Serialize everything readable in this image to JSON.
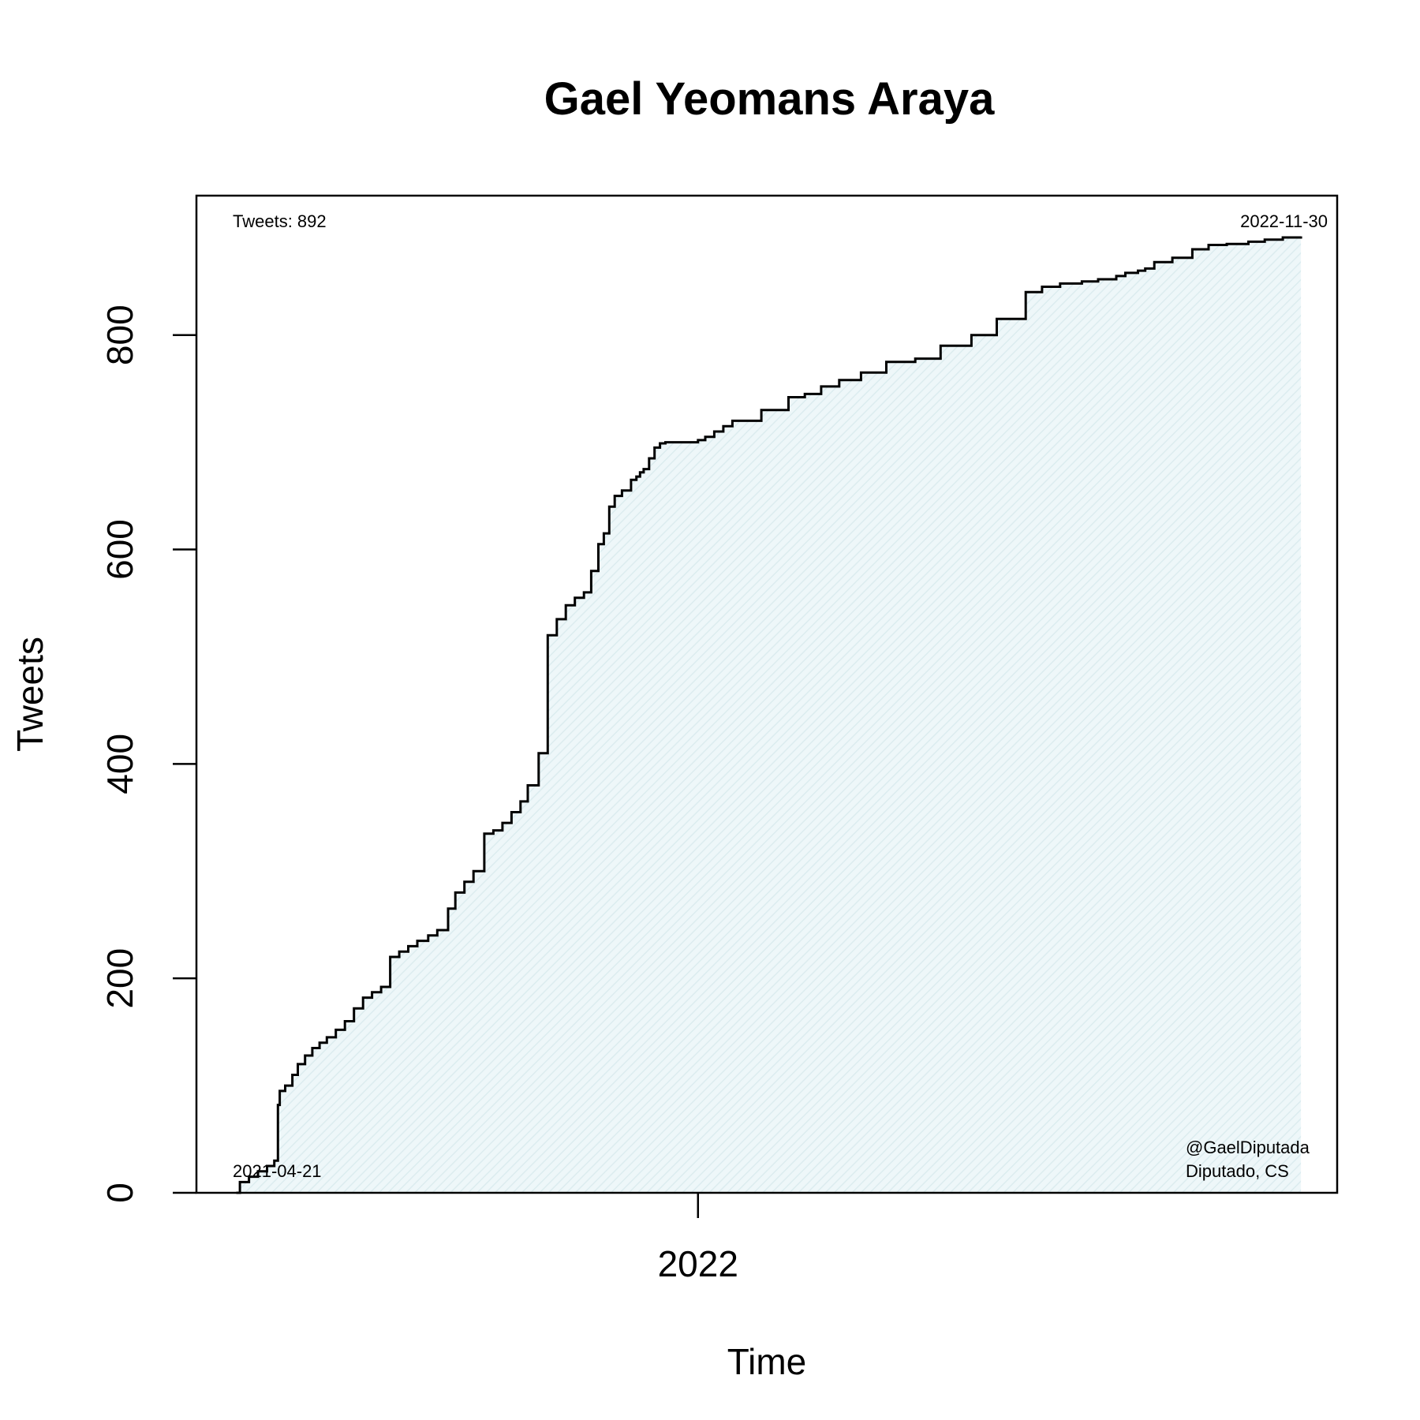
{
  "chart_data": {
    "type": "area",
    "title": "Gael Yeomans Araya",
    "xlabel": "Time",
    "ylabel": "Tweets",
    "x_ticks": [
      {
        "date": "2022-01-01",
        "label": "2022"
      }
    ],
    "y_ticks": [
      0,
      200,
      400,
      600,
      800
    ],
    "ylim": [
      0,
      930
    ],
    "xlim": [
      "2021-03-30",
      "2022-12-20"
    ],
    "grid": false,
    "line_color": "#000000",
    "fill_color": "#e3f1f4",
    "annotations": {
      "top_left": "Tweets: 892",
      "top_right": "2022-11-30",
      "bottom_left": "2021-04-21",
      "bottom_right_1": "@GaelDiputada",
      "bottom_right_2": "Diputado, CS"
    },
    "series": [
      {
        "x": [
          "2021-04-21",
          "2021-04-23",
          "2021-04-28",
          "2021-05-03",
          "2021-05-08",
          "2021-05-12",
          "2021-05-14",
          "2021-05-15",
          "2021-05-18",
          "2021-05-22",
          "2021-05-25",
          "2021-05-29",
          "2021-06-02",
          "2021-06-06",
          "2021-06-10",
          "2021-06-15",
          "2021-06-20",
          "2021-06-25",
          "2021-06-30",
          "2021-07-05",
          "2021-07-10",
          "2021-07-15",
          "2021-07-20",
          "2021-07-25",
          "2021-07-30",
          "2021-08-05",
          "2021-08-10",
          "2021-08-16",
          "2021-08-20",
          "2021-08-25",
          "2021-08-30",
          "2021-09-05",
          "2021-09-10",
          "2021-09-15",
          "2021-09-20",
          "2021-09-25",
          "2021-09-29",
          "2021-10-05",
          "2021-10-10",
          "2021-10-15",
          "2021-10-20",
          "2021-10-25",
          "2021-10-30",
          "2021-11-03",
          "2021-11-07",
          "2021-11-10",
          "2021-11-13",
          "2021-11-16",
          "2021-11-20",
          "2021-11-25",
          "2021-11-28",
          "2021-11-30",
          "2021-12-02",
          "2021-12-05",
          "2021-12-08",
          "2021-12-11",
          "2021-12-14",
          "2021-12-17",
          "2021-12-21",
          "2021-12-25",
          "2021-12-28",
          "2022-01-01",
          "2022-01-05",
          "2022-01-10",
          "2022-01-15",
          "2022-01-20",
          "2022-02-05",
          "2022-02-20",
          "2022-03-01",
          "2022-03-10",
          "2022-03-20",
          "2022-04-01",
          "2022-04-15",
          "2022-05-01",
          "2022-05-15",
          "2022-06-01",
          "2022-06-15",
          "2022-07-01",
          "2022-07-10",
          "2022-07-20",
          "2022-08-01",
          "2022-08-10",
          "2022-08-20",
          "2022-08-25",
          "2022-09-01",
          "2022-09-05",
          "2022-09-10",
          "2022-09-20",
          "2022-10-01",
          "2022-10-10",
          "2022-10-20",
          "2022-11-01",
          "2022-11-10",
          "2022-11-20",
          "2022-11-30"
        ],
        "y": [
          0,
          10,
          15,
          20,
          25,
          30,
          82,
          95,
          100,
          110,
          120,
          128,
          135,
          140,
          145,
          152,
          160,
          172,
          182,
          187,
          192,
          220,
          225,
          230,
          235,
          240,
          245,
          265,
          280,
          290,
          300,
          335,
          338,
          345,
          355,
          365,
          380,
          410,
          520,
          535,
          548,
          555,
          560,
          580,
          605,
          615,
          640,
          650,
          655,
          665,
          668,
          672,
          675,
          685,
          695,
          699,
          700,
          700,
          700,
          700,
          700,
          702,
          705,
          710,
          715,
          720,
          730,
          742,
          745,
          752,
          758,
          765,
          775,
          778,
          790,
          800,
          815,
          840,
          845,
          848,
          850,
          852,
          855,
          858,
          860,
          862,
          868,
          872,
          880,
          884,
          885,
          887,
          889,
          891,
          892
        ]
      }
    ]
  }
}
